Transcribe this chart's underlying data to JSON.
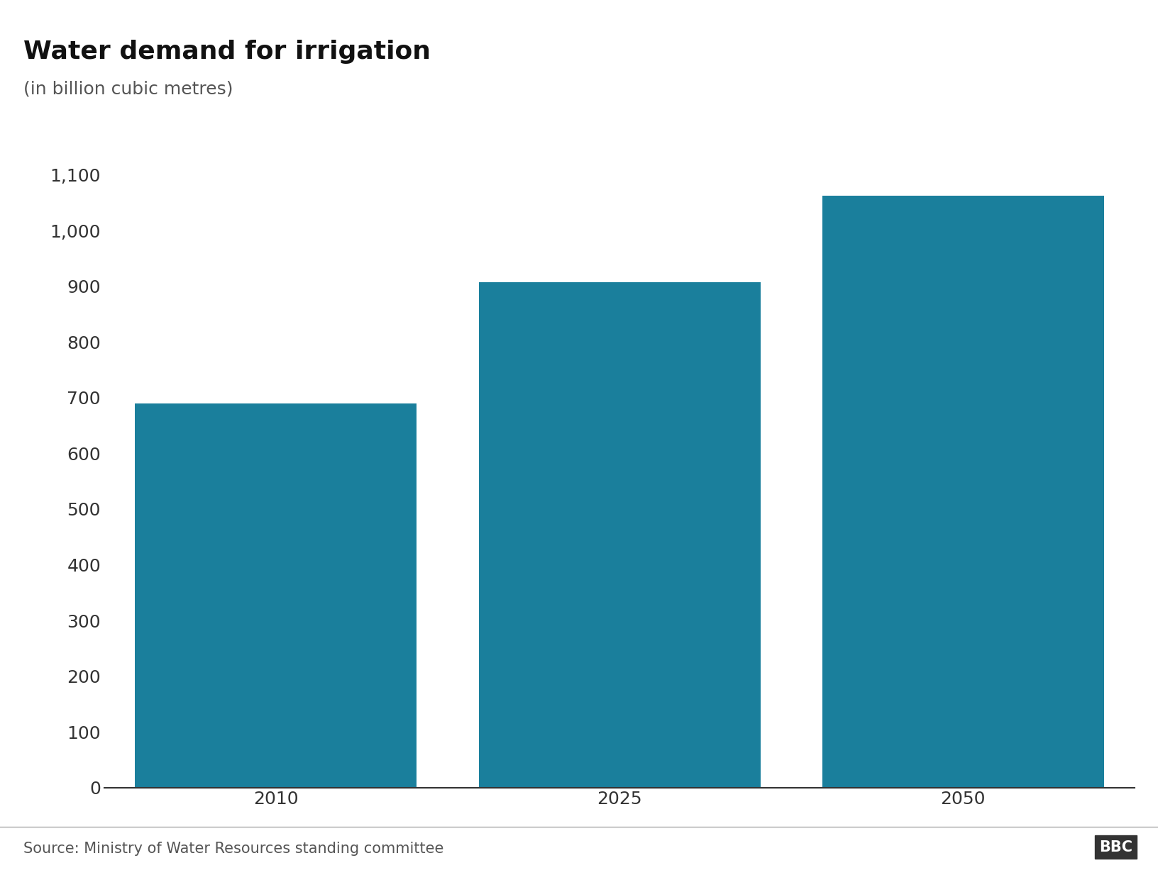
{
  "title": "Water demand for irrigation",
  "subtitle": "(in billion cubic metres)",
  "categories": [
    "2010",
    "2025",
    "2050"
  ],
  "values": [
    690,
    908,
    1063
  ],
  "bar_color": "#1a7f9c",
  "background_color": "#ffffff",
  "ylim": [
    0,
    1100
  ],
  "yticks": [
    0,
    100,
    200,
    300,
    400,
    500,
    600,
    700,
    800,
    900,
    1000,
    1100
  ],
  "title_fontsize": 26,
  "subtitle_fontsize": 18,
  "tick_fontsize": 18,
  "source_text": "Source: Ministry of Water Resources standing committee",
  "source_fontsize": 15,
  "bbc_text": "BBC",
  "footer_line_color": "#aaaaaa",
  "bar_width": 0.82
}
